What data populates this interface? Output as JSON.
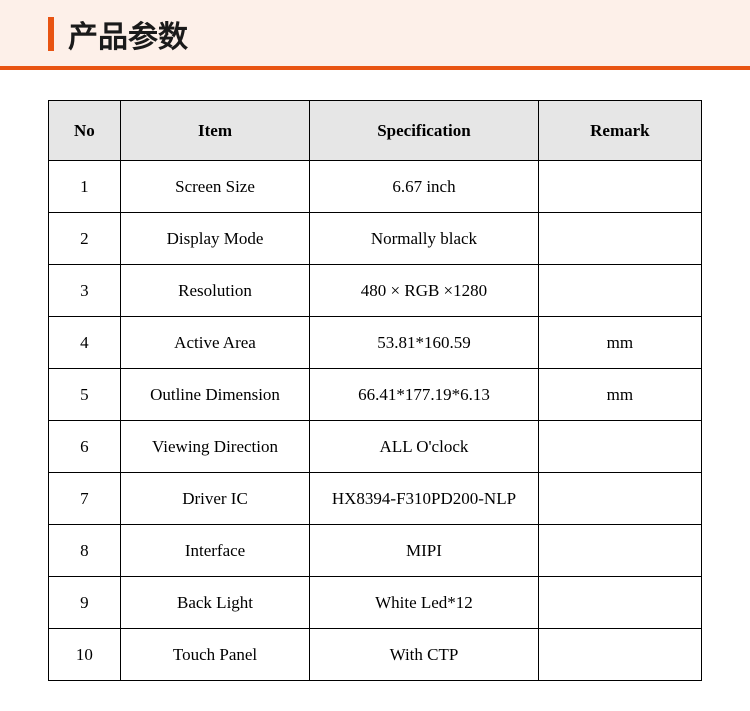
{
  "header": {
    "title": "产品参数",
    "accent_color": "#e85412",
    "band_bg": "#fdf0e9",
    "underline_color": "#e85412"
  },
  "table": {
    "type": "table",
    "header_bg": "#e6e6e6",
    "border_color": "#000000",
    "text_color": "#000000",
    "font_size_header": 17,
    "font_size_cell": 17,
    "row_height_header": 60,
    "row_height_cell": 52,
    "columns": [
      {
        "key": "no",
        "label": "No",
        "width_pct": 11
      },
      {
        "key": "item",
        "label": "Item",
        "width_pct": 29
      },
      {
        "key": "spec",
        "label": "Specification",
        "width_pct": 35
      },
      {
        "key": "remark",
        "label": "Remark",
        "width_pct": 25
      }
    ],
    "rows": [
      {
        "no": "1",
        "item": "Screen Size",
        "spec": "6.67 inch",
        "remark": ""
      },
      {
        "no": "2",
        "item": "Display Mode",
        "spec": "Normally black",
        "remark": ""
      },
      {
        "no": "3",
        "item": "Resolution",
        "spec": "480 × RGB ×1280",
        "remark": ""
      },
      {
        "no": "4",
        "item": "Active Area",
        "spec": "53.81*160.59",
        "remark": "mm"
      },
      {
        "no": "5",
        "item": "Outline Dimension",
        "spec": "66.41*177.19*6.13",
        "remark": "mm"
      },
      {
        "no": "6",
        "item": "Viewing Direction",
        "spec": "ALL O'clock",
        "remark": ""
      },
      {
        "no": "7",
        "item": "Driver IC",
        "spec": "HX8394-F310PD200-NLP",
        "remark": ""
      },
      {
        "no": "8",
        "item": "Interface",
        "spec": "MIPI",
        "remark": ""
      },
      {
        "no": "9",
        "item": "Back Light",
        "spec": "White Led*12",
        "remark": ""
      },
      {
        "no": "10",
        "item": "Touch Panel",
        "spec": "With CTP",
        "remark": ""
      }
    ]
  }
}
